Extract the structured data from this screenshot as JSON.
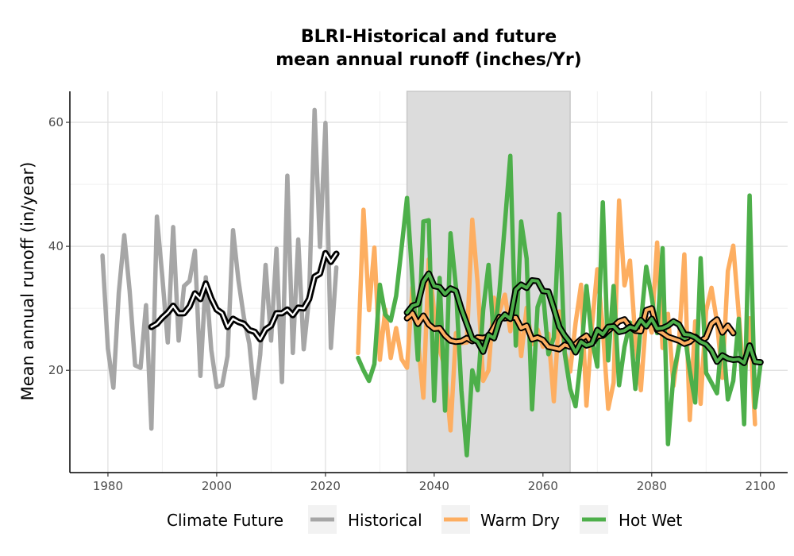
{
  "chart_data": {
    "type": "line",
    "title_line1": "BLRI-Historical and future",
    "title_line2": "mean annual runoff (inches/Yr)",
    "xlabel": "",
    "ylabel": "Mean annual runoff (in/year)",
    "xlim": [
      1973,
      2105
    ],
    "ylim": [
      3.5,
      65
    ],
    "x_ticks": [
      1980,
      2000,
      2020,
      2040,
      2060,
      2080,
      2100
    ],
    "y_ticks": [
      20,
      40,
      60
    ],
    "grid": true,
    "shaded_period": [
      2035,
      2065
    ],
    "legend": {
      "title": "Climate Future",
      "placement": "bottom",
      "entries": [
        "Historical",
        "Warm Dry",
        "Hot Wet"
      ]
    },
    "series": [
      {
        "name": "Historical",
        "color": "#a6a6a6",
        "x_start": 1979,
        "values": [
          38.5,
          23.5,
          17.2,
          32.5,
          41.8,
          32.8,
          20.8,
          20.4,
          30.5,
          10.6,
          44.8,
          35.1,
          24.5,
          43.1,
          24.8,
          33.6,
          34.4,
          39.3,
          19.1,
          35.0,
          23.3,
          17.3,
          17.6,
          22.3,
          42.6,
          34.5,
          28.5,
          24.3,
          15.5,
          22.5,
          37.0,
          24.8,
          39.6,
          18.1,
          51.4,
          22.8,
          41.1,
          23.4,
          31.7,
          62.0,
          39.9,
          59.9,
          23.6,
          36.6
        ]
      },
      {
        "name": "Historical smoothed",
        "color": "#000000",
        "x_start": 1988,
        "values": [
          27.0,
          27.5,
          28.5,
          29.3,
          30.4,
          29.2,
          29.2,
          30.3,
          32.4,
          31.5,
          34.0,
          31.6,
          29.8,
          29.2,
          27.0,
          28.3,
          27.8,
          27.5,
          26.5,
          26.2,
          25.0,
          26.6,
          27.2,
          29.2,
          29.2,
          29.8,
          28.9,
          30.1,
          30.0,
          31.5,
          35.1,
          35.6,
          38.9,
          37.5,
          38.8
        ]
      },
      {
        "name": "Warm Dry",
        "color": "#fdae61",
        "x_start": 2026,
        "values": [
          22.8,
          45.9,
          29.7,
          39.8,
          21.7,
          29.8,
          22.0,
          26.8,
          21.8,
          20.4,
          33.4,
          24.9,
          15.6,
          37.9,
          29.4,
          23.4,
          20.3,
          10.3,
          26.0,
          24.4,
          24.5,
          44.3,
          34.0,
          18.3,
          20.0,
          31.7,
          29.5,
          32.2,
          26.3,
          32.0,
          22.3,
          30.1,
          24.2,
          26.6,
          23.8,
          25.9,
          15.0,
          29.5,
          23.0,
          19.8,
          27.6,
          33.8,
          14.3,
          27.1,
          36.3,
          26.7,
          13.8,
          18.0,
          47.4,
          33.7,
          37.7,
          25.1,
          16.8,
          28.7,
          26.1,
          40.6,
          23.6,
          29.1,
          17.5,
          24.2,
          38.7,
          12.0,
          27.9,
          14.6,
          29.6,
          33.3,
          27.8,
          18.8,
          36.0,
          40.1,
          29.1,
          17.6,
          28.4,
          11.3
        ]
      },
      {
        "name": "Warm Dry smoothed",
        "color": "#fdae61",
        "x_start": 2035,
        "values": [
          28.4,
          29.2,
          27.5,
          28.8,
          27.4,
          26.7,
          26.8,
          25.6,
          24.8,
          24.6,
          24.7,
          25.2,
          24.7,
          25.3,
          25.2,
          25.5,
          27.0,
          28.6,
          28.4,
          28.5,
          28.5,
          26.8,
          27.2,
          25.0,
          25.3,
          24.9,
          23.8,
          23.6,
          23.4,
          24.1,
          23.8,
          24.2,
          25.0,
          25.6,
          24.3,
          25.5,
          25.6,
          26.4,
          27.1,
          27.9,
          28.2,
          27.0,
          26.4,
          26.3,
          29.7,
          30.0,
          26.5,
          26.0,
          25.4,
          25.1,
          24.8,
          24.3,
          24.6,
          25.4,
          24.7,
          25.3,
          27.5,
          28.2,
          26.1,
          27.2,
          26.0
        ]
      },
      {
        "name": "Hot Wet",
        "color": "#4daf4a",
        "x_start": 2026,
        "values": [
          22.0,
          20.0,
          18.3,
          21.0,
          33.8,
          29.0,
          28.0,
          32.0,
          39.8,
          47.8,
          34.5,
          21.7,
          44.0,
          44.2,
          15.1,
          34.9,
          13.5,
          42.1,
          33.5,
          16.8,
          6.3,
          20.0,
          16.8,
          29.7,
          37.0,
          25.0,
          32.7,
          43.7,
          54.6,
          24.0,
          44.0,
          38.0,
          13.7,
          30.2,
          32.7,
          22.6,
          25.3,
          45.2,
          22.7,
          17.0,
          14.2,
          22.1,
          33.6,
          24.9,
          20.6,
          47.1,
          21.6,
          33.6,
          17.6,
          23.8,
          27.7,
          17.0,
          27.5,
          36.7,
          31.8,
          26.0,
          39.7,
          8.1,
          19.3,
          23.7,
          26.3,
          20.0,
          14.8,
          38.1,
          19.6,
          18.0,
          16.3,
          26.4,
          15.3,
          18.3,
          28.3,
          11.3,
          48.2,
          14.0,
          21.0
        ]
      },
      {
        "name": "Hot Wet smoothed",
        "color": "#4daf4a",
        "x_start": 2035,
        "values": [
          29.3,
          30.4,
          30.7,
          34.3,
          35.6,
          33.6,
          33.4,
          32.3,
          33.2,
          32.8,
          29.9,
          27.5,
          25.1,
          24.6,
          23.0,
          25.7,
          25.2,
          28.0,
          29.0,
          28.3,
          33.0,
          33.8,
          33.3,
          34.5,
          34.4,
          32.8,
          32.7,
          30.0,
          27.0,
          25.6,
          24.5,
          22.9,
          24.6,
          24.0,
          24.3,
          26.5,
          25.8,
          27.0,
          27.1,
          26.2,
          26.4,
          27.0,
          26.7,
          28.1,
          27.1,
          28.3,
          26.7,
          26.8,
          27.2,
          27.9,
          27.4,
          25.8,
          25.7,
          25.3,
          24.6,
          24.2,
          23.2,
          21.4,
          22.4,
          21.9,
          21.7,
          21.8,
          21.2,
          24.0,
          21.4,
          21.3
        ]
      }
    ]
  }
}
